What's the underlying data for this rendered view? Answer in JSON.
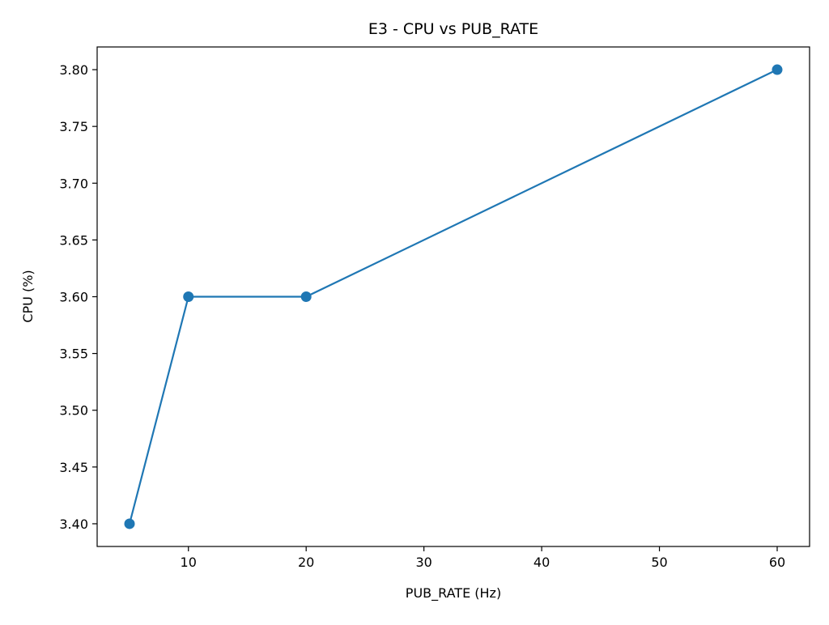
{
  "chart_data": {
    "type": "line",
    "title": "E3 - CPU vs PUB_RATE",
    "xlabel": "PUB_RATE (Hz)",
    "ylabel": "CPU (%)",
    "xlim": [
      2.25,
      62.75
    ],
    "ylim": [
      3.38,
      3.82
    ],
    "x_ticks": [
      10,
      20,
      30,
      40,
      50,
      60
    ],
    "x_tick_labels": [
      "10",
      "20",
      "30",
      "40",
      "50",
      "60"
    ],
    "y_ticks": [
      3.4,
      3.45,
      3.5,
      3.55,
      3.6,
      3.65,
      3.7,
      3.75,
      3.8
    ],
    "y_tick_labels": [
      "3.40",
      "3.45",
      "3.50",
      "3.55",
      "3.60",
      "3.65",
      "3.70",
      "3.75",
      "3.80"
    ],
    "grid": false,
    "legend": "none",
    "series": [
      {
        "x": [
          5,
          10,
          20,
          60
        ],
        "y": [
          3.4,
          3.6,
          3.6,
          3.8
        ],
        "color": "#1f77b4",
        "marker": "circle"
      }
    ]
  }
}
